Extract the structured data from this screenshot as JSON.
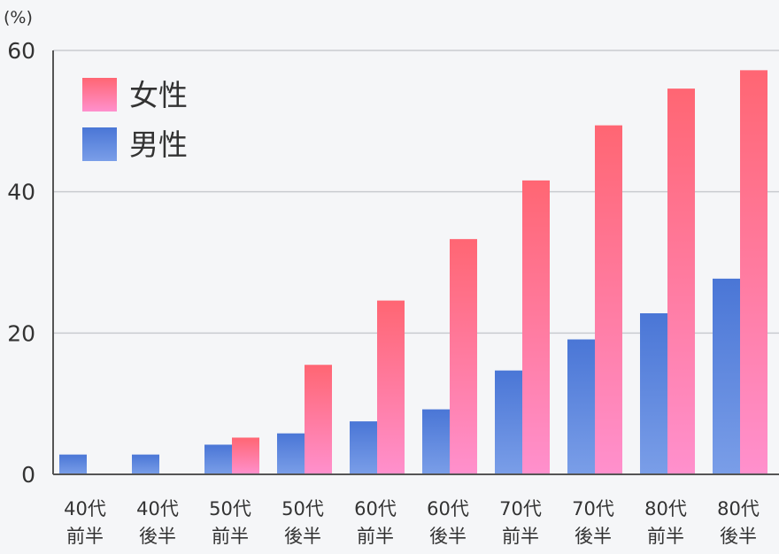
{
  "chart_data": {
    "type": "bar",
    "unit_label": "(%)",
    "categories": [
      [
        "40代",
        "前半"
      ],
      [
        "40代",
        "後半"
      ],
      [
        "50代",
        "前半"
      ],
      [
        "50代",
        "後半"
      ],
      [
        "60代",
        "前半"
      ],
      [
        "60代",
        "後半"
      ],
      [
        "70代",
        "前半"
      ],
      [
        "70代",
        "後半"
      ],
      [
        "80代",
        "前半"
      ],
      [
        "80代",
        "後半"
      ]
    ],
    "series": [
      {
        "name": "女性",
        "values": [
          0,
          0,
          5.2,
          15.5,
          24.6,
          33.3,
          41.6,
          49.4,
          54.6,
          57.2
        ],
        "color_top": "#ff6673",
        "color_bottom": "#ff90cd"
      },
      {
        "name": "男性",
        "values": [
          2.8,
          2.8,
          4.2,
          5.8,
          7.5,
          9.2,
          14.7,
          19.1,
          22.8,
          27.7
        ],
        "color_top": "#4a76d6",
        "color_bottom": "#7a9ee8"
      }
    ],
    "yticks": [
      0,
      20,
      40,
      60
    ],
    "ylim": [
      0,
      60
    ],
    "grid": true,
    "legend_position": "top-left"
  }
}
